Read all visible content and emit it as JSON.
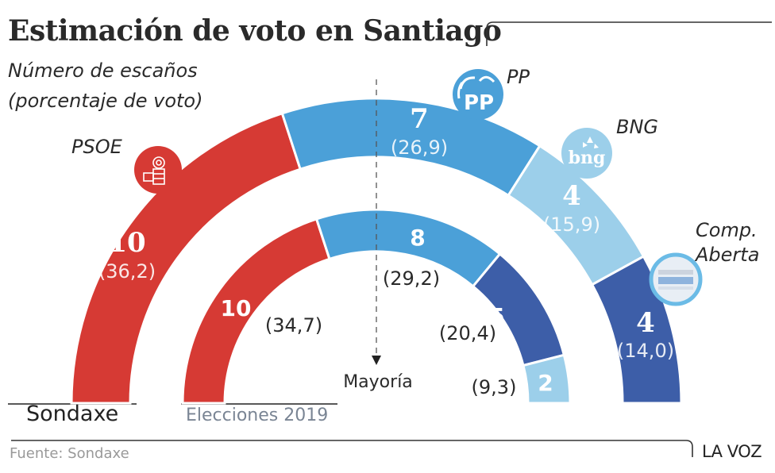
{
  "header": {
    "title": "Estimación de voto en Santiago",
    "subtitle_line1": "Número de escaños",
    "subtitle_line2": "(porcentaje de voto)"
  },
  "legend": {
    "outer_label": "Sondaxe",
    "inner_label": "Elecciones 2019"
  },
  "majority_label": "Mayoría",
  "footer": {
    "source": "Fuente: Sondaxe",
    "brand": "LA VOZ"
  },
  "chart_data": {
    "type": "pie",
    "subtype": "parliament-semicircle",
    "title": "Estimación de voto en Santiago",
    "subtitle": "Número de escaños (porcentaje de voto)",
    "total_seats": 25,
    "majority_seats": 13,
    "series": [
      {
        "name": "Sondaxe",
        "ring": "outer",
        "segments": [
          {
            "party": "PSOE",
            "seats": 10,
            "pct": "36,2",
            "color": "#d63a34"
          },
          {
            "party": "PP",
            "seats": 7,
            "pct": "26,9",
            "color": "#4ba0d8"
          },
          {
            "party": "BNG",
            "seats": 4,
            "pct": "15,9",
            "color": "#9ccfea"
          },
          {
            "party": "Comp. Aberta",
            "seats": 4,
            "pct": "14,0",
            "color": "#3d5ea8"
          }
        ]
      },
      {
        "name": "Elecciones 2019",
        "ring": "inner",
        "segments": [
          {
            "party": "PSOE",
            "seats": 10,
            "pct": "34,7",
            "color": "#d63a34"
          },
          {
            "party": "PP",
            "seats": 8,
            "pct": "29,2",
            "color": "#4ba0d8"
          },
          {
            "party": "Comp. Aberta",
            "seats": 5,
            "pct": "20,4",
            "color": "#3d5ea8"
          },
          {
            "party": "BNG",
            "seats": 2,
            "pct": "9,3",
            "color": "#9ccfea"
          }
        ]
      }
    ],
    "party_labels": [
      {
        "party": "PSOE",
        "text": "PSOE",
        "logo": "psoe-logo-icon"
      },
      {
        "party": "PP",
        "text": "PP",
        "logo": "pp-logo-icon",
        "logo_text": "PP"
      },
      {
        "party": "BNG",
        "text": "BNG",
        "logo": "bng-logo-icon",
        "logo_text": "bng"
      },
      {
        "party": "Comp. Aberta",
        "text_line1": "Comp.",
        "text_line2": "Aberta",
        "logo": "compostela-aberta-logo-icon"
      }
    ]
  }
}
